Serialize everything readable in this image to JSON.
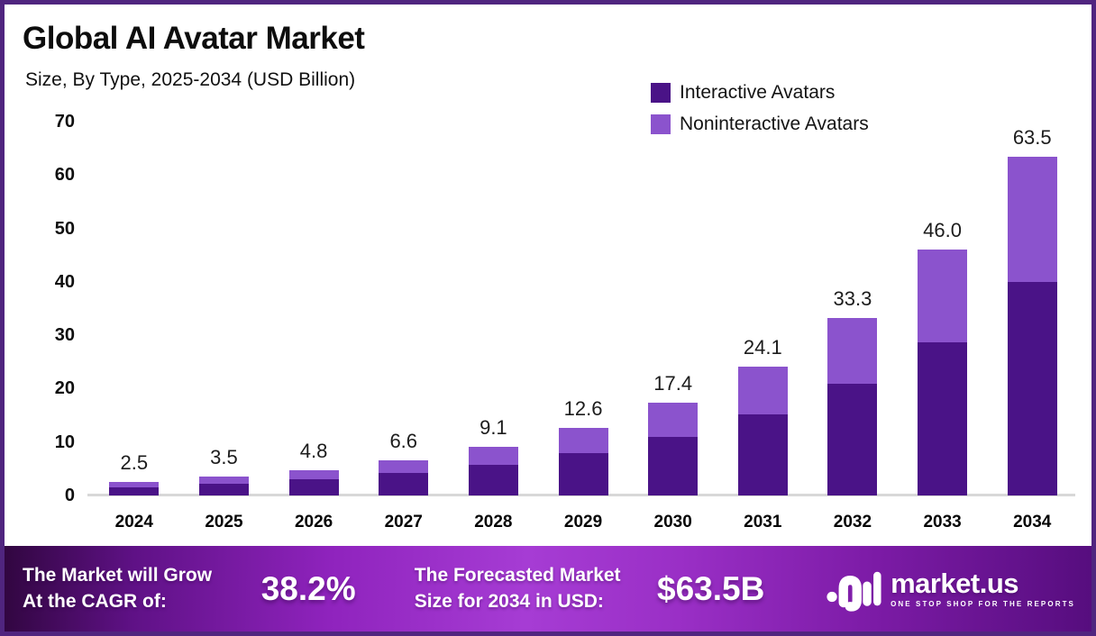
{
  "header": {
    "title": "Global AI Avatar Market",
    "subtitle": "Size, By Type, 2025-2034 (USD Billion)"
  },
  "legend": {
    "items": [
      {
        "label": "Interactive Avatars",
        "color": "#4a1387"
      },
      {
        "label": "Noninteractive Avatars",
        "color": "#8b53cd"
      }
    ]
  },
  "chart_data": {
    "type": "bar",
    "subtype": "stacked",
    "title": "Global AI Avatar Market",
    "subtitle": "Size, By Type, 2025-2034 (USD Billion)",
    "categories": [
      "2024",
      "2025",
      "2026",
      "2027",
      "2028",
      "2029",
      "2030",
      "2031",
      "2032",
      "2033",
      "2034"
    ],
    "series": [
      {
        "name": "Interactive Avatars",
        "color": "#4a1387",
        "values": [
          1.6,
          2.2,
          3.0,
          4.2,
          5.7,
          7.9,
          10.9,
          15.2,
          21.0,
          28.7,
          39.9
        ]
      },
      {
        "name": "Noninteractive Avatars",
        "color": "#8b53cd",
        "values": [
          0.9,
          1.3,
          1.8,
          2.4,
          3.4,
          4.7,
          6.5,
          8.9,
          12.3,
          17.3,
          23.6
        ]
      }
    ],
    "totals": [
      2.5,
      3.5,
      4.8,
      6.6,
      9.1,
      12.6,
      17.4,
      24.1,
      33.3,
      46.0,
      63.5
    ],
    "total_labels": [
      "2.5",
      "3.5",
      "4.8",
      "6.6",
      "9.1",
      "12.6",
      "17.4",
      "24.1",
      "33.3",
      "46.0",
      "63.5"
    ],
    "y_ticks": [
      0,
      10,
      20,
      30,
      40,
      50,
      60,
      70
    ],
    "ylim": [
      0,
      70
    ],
    "xlabel": "",
    "ylabel": "USD Billion",
    "grid": false,
    "legend_position": "top-right"
  },
  "banner": {
    "cagr_label_line1": "The Market will Grow",
    "cagr_label_line2": "At the CAGR of:",
    "cagr_value": "38.2%",
    "forecast_label_line1": "The Forecasted Market",
    "forecast_label_line2": "Size for 2034 in USD:",
    "forecast_value": "$63.5B",
    "logo_name": "market.us",
    "logo_tagline": "ONE STOP SHOP FOR THE REPORTS"
  },
  "colors": {
    "frame_border": "#50257f",
    "interactive": "#4a1387",
    "noninteractive": "#8b53cd",
    "baseline": "#d8d8d8",
    "banner_gradient_start": "#310640",
    "banner_gradient_mid": "#a63cd4",
    "banner_gradient_end": "#560d7e",
    "text_dark": "#0d0d0d",
    "text_white": "#ffffff"
  }
}
